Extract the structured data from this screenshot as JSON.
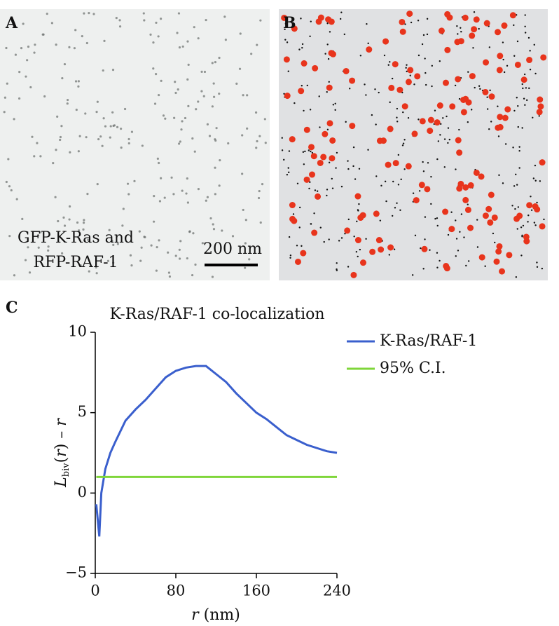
{
  "panels": {
    "a": {
      "label": "A",
      "caption": [
        "GFP-K-Ras and",
        "RFP-RAF-1"
      ],
      "scale_bar": "200 nm"
    },
    "b": {
      "label": "B"
    },
    "c": {
      "label": "C"
    }
  },
  "chart_data": {
    "type": "line",
    "title": "K-Ras/RAF-1 co-localization",
    "x_label": [
      "r",
      " (nm)"
    ],
    "y_label": [
      "L",
      "biv",
      "(",
      "r",
      ") – ",
      "r"
    ],
    "x": [
      1,
      4,
      6,
      10,
      15,
      20,
      30,
      40,
      50,
      60,
      70,
      80,
      90,
      100,
      110,
      120,
      130,
      140,
      150,
      160,
      170,
      180,
      190,
      200,
      210,
      220,
      230,
      240
    ],
    "series": [
      {
        "name": "K-Ras/RAF-1",
        "color": "#3a5fcd",
        "values": [
          -0.7,
          -2.7,
          0,
          1.5,
          2.5,
          3.2,
          4.5,
          5.2,
          5.8,
          6.5,
          7.2,
          7.6,
          7.8,
          7.9,
          7.9,
          7.4,
          6.9,
          6.2,
          5.6,
          5.0,
          4.6,
          4.1,
          3.6,
          3.3,
          3.0,
          2.8,
          2.6,
          2.5
        ]
      },
      {
        "name": "95% C.I.",
        "color": "#7fd63a",
        "values": [
          1,
          1,
          1,
          1,
          1,
          1,
          1,
          1,
          1,
          1,
          1,
          1,
          1,
          1,
          1,
          1,
          1,
          1,
          1,
          1,
          1,
          1,
          1,
          1,
          1,
          1,
          1,
          1
        ]
      }
    ],
    "xlim": [
      0,
      240
    ],
    "xticks": [
      0,
      80,
      160,
      240
    ],
    "ylim": [
      -5,
      10
    ],
    "yticks": [
      {
        "value": -5,
        "label": "−5"
      },
      0,
      5,
      10
    ]
  }
}
